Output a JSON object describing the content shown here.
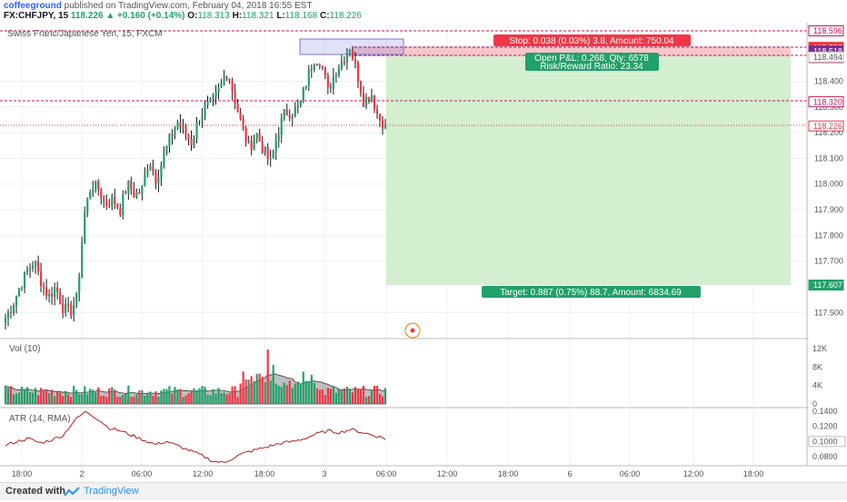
{
  "header": {
    "author": "coffeeground",
    "published_text": "published on TradingView.com, February 04, 2018 16:55 EST",
    "symbol": "FX:CHFJPY, 15",
    "last_price": "118.226",
    "change": "▲ +0.160 (+0.14%)",
    "o_label": "O:",
    "o_value": "118.313",
    "h_label": "H:",
    "h_value": "118.321",
    "l_label": "L:",
    "l_value": "118.168",
    "c_label": "C:",
    "c_value": "118.226"
  },
  "main_pane": {
    "legend": "Swiss Franc/Japanese Yen, 15, FXCM"
  },
  "position": {
    "stop_label": "Stop: 0.038 (0.03%) 3.8, Amount: 750.04",
    "open_pnl_label": "Open P&L: 0.268, Qty: 6578",
    "risk_reward_label": "Risk/Reward Ratio: 23.34",
    "target_label": "Target: 0.887 (0.75%) 88.7, Amount: 6834.69"
  },
  "price_scale": {
    "ticks": [
      "118.400",
      "118.300",
      "118.200",
      "118.100",
      "118.000",
      "117.900",
      "117.800",
      "117.700",
      "117.500"
    ],
    "badges": [
      {
        "value": "118.596",
        "bg": "#ffffff",
        "fg": "#c2185b",
        "border": "#c2185b"
      },
      {
        "value": "118.532",
        "bg": "#f23645",
        "fg": "#ffffff",
        "border": "#f23645"
      },
      {
        "value": "118.518",
        "bg": "#7b2d8e",
        "fg": "#ffffff",
        "border": "#7b2d8e"
      },
      {
        "value": "118.492",
        "bg": "#ffffff",
        "fg": "#c2185b",
        "border": "#c2185b"
      },
      {
        "value": "118.494",
        "bg": "#ffffff",
        "fg": "#555555",
        "border": "#bbbbbb"
      },
      {
        "value": "118.320",
        "bg": "#ffffff",
        "fg": "#c2185b",
        "border": "#c2185b"
      },
      {
        "value": "118.226",
        "bg": "#ffffff",
        "fg": "#f23645",
        "border": "#f23645"
      },
      {
        "value": "117.607",
        "bg": "#22a06b",
        "fg": "#ffffff",
        "border": "#22a06b"
      }
    ]
  },
  "volume_pane": {
    "legend": "Vol (10)",
    "ticks": [
      "12K",
      "8K",
      "4K",
      "0"
    ]
  },
  "atr_pane": {
    "legend": "ATR (14, RMA)",
    "ticks": [
      "0.1400",
      "0.1200",
      "0.1000",
      "0.0800"
    ]
  },
  "time_axis": {
    "labels": [
      "18:00",
      "2",
      "06:00",
      "12:00",
      "18:00",
      "3",
      "06:00",
      "12:00",
      "18:00",
      "6",
      "06:00",
      "12:00",
      "18:00"
    ]
  },
  "footer": {
    "created_with": "Created with",
    "brand": "TradingView"
  },
  "colors": {
    "up": "#22a06b",
    "down": "#f23645",
    "wick": "#131722",
    "target_zone": "#d3efd0",
    "stop_zone": "#f7c6c9",
    "atr_line": "#b71c1c"
  },
  "chart_data": {
    "type": "candlestick",
    "symbol": "CHFJPY",
    "timeframe": "15",
    "ylim": [
      117.45,
      118.62
    ],
    "price_path": [
      117.48,
      117.53,
      117.6,
      117.66,
      117.7,
      117.62,
      117.56,
      117.6,
      117.52,
      117.5,
      117.56,
      117.88,
      118.0,
      117.98,
      117.92,
      117.94,
      117.9,
      118.0,
      117.96,
      117.97,
      118.1,
      118.02,
      118.1,
      118.18,
      118.24,
      118.2,
      118.16,
      118.26,
      118.3,
      118.32,
      118.38,
      118.44,
      118.33,
      118.22,
      118.14,
      118.2,
      118.13,
      118.08,
      118.2,
      118.28,
      118.28,
      118.3,
      118.4,
      118.49,
      118.48,
      118.36,
      118.44,
      118.48,
      118.54,
      118.44,
      118.32,
      118.36,
      118.26,
      118.23
    ],
    "atr_range": [
      0.07,
      0.145
    ]
  }
}
